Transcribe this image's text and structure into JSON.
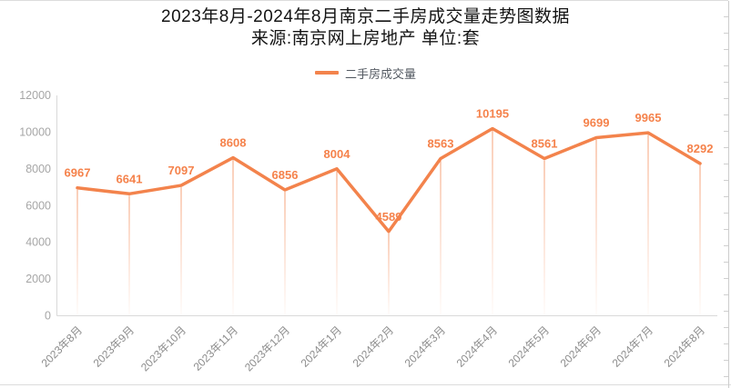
{
  "title": "2023年8月-2024年8月南京二手房成交量走势图数据",
  "subtitle": "来源:南京网上房地产 单位:套",
  "legend": {
    "label": "二手房成交量"
  },
  "colors": {
    "accent": "#F3834C",
    "axis_line": "#D9D9D9",
    "y_tick_label": "#A6A6A6",
    "x_tick_label": "#8C8C8C",
    "data_label": "#F5824B",
    "legend_label": "#555B63",
    "title_text": "#141414"
  },
  "chart_data": {
    "type": "line",
    "title": "2023年8月-2024年8月南京二手房成交量走势图数据",
    "subtitle": "来源:南京网上房地产 单位:套",
    "categories": [
      "2023年8月",
      "2023年9月",
      "2023年10月",
      "2023年11月",
      "2023年12月",
      "2024年1月",
      "2024年2月",
      "2024年3月",
      "2024年4月",
      "2024年5月",
      "2024年6月",
      "2024年7月",
      "2024年8月"
    ],
    "series": [
      {
        "name": "二手房成交量",
        "values": [
          6967,
          6641,
          7097,
          8608,
          6856,
          8004,
          4589,
          8563,
          10195,
          8561,
          9699,
          9965,
          8292
        ]
      }
    ],
    "xlabel": "",
    "ylabel": "",
    "ylim": [
      0,
      12000
    ],
    "y_ticks": [
      0,
      2000,
      4000,
      6000,
      8000,
      10000,
      12000
    ],
    "grid": false,
    "legend_position": "top",
    "data_labels": true,
    "x_label_rotation": -45,
    "drop_lines": true
  }
}
